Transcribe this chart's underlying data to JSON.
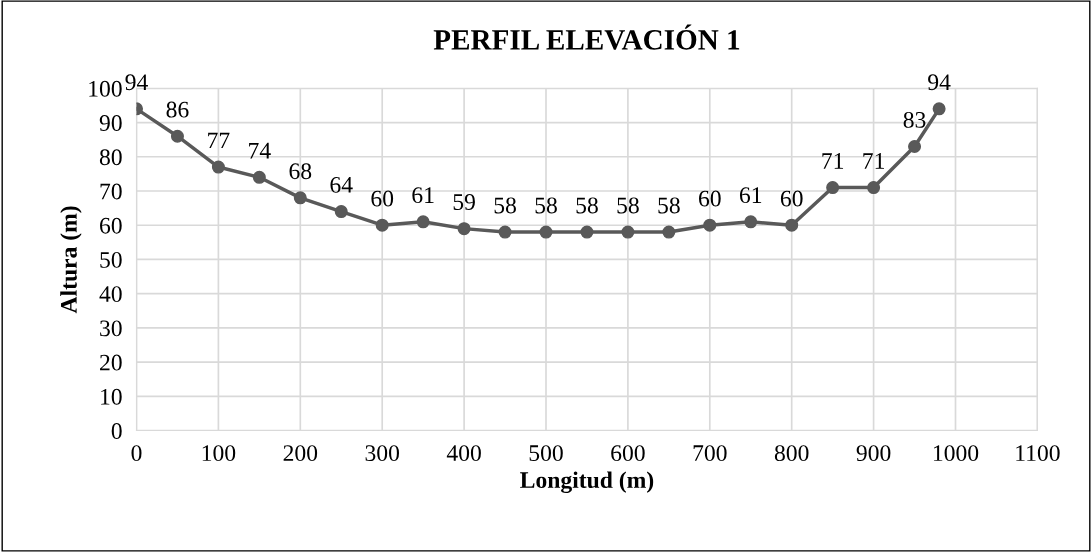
{
  "chart_data": {
    "type": "line",
    "title": "PERFIL ELEVACIÓN 1",
    "xlabel": "Longitud (m)",
    "ylabel": "Altura (m)",
    "x": [
      0,
      50,
      100,
      150,
      200,
      250,
      300,
      350,
      400,
      450,
      500,
      550,
      600,
      650,
      700,
      750,
      800,
      850,
      900,
      950,
      980
    ],
    "series": [
      {
        "color": "#595959",
        "values": [
          94,
          86,
          77,
          74,
          68,
          64,
          60,
          61,
          59,
          58,
          58,
          58,
          58,
          58,
          60,
          61,
          60,
          71,
          71,
          83,
          94
        ]
      }
    ],
    "xlim": [
      0,
      1100
    ],
    "xticks": [
      0,
      100,
      200,
      300,
      400,
      500,
      600,
      700,
      800,
      900,
      1000,
      1100
    ],
    "ylim": [
      0,
      100
    ],
    "yticks": [
      0,
      10,
      20,
      30,
      40,
      50,
      60,
      70,
      80,
      90,
      100
    ],
    "grid": true,
    "marker": "circle",
    "line_style": "solid",
    "data_labels": true
  }
}
